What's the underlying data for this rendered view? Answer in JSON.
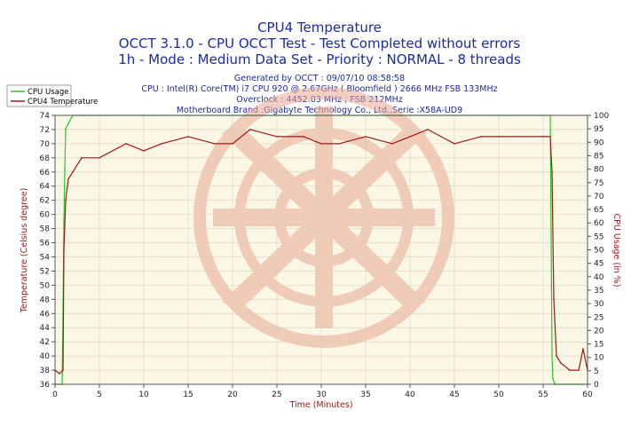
{
  "header": {
    "title": "CPU4 Temperature",
    "subtitle1": "OCCT 3.1.0 - CPU OCCT Test - Test Completed without errors",
    "subtitle2": "1h - Mode : Medium Data Set - Priority : NORMAL - 8 threads",
    "info": [
      "Generated by OCCT : 09/07/10 08:58:58",
      "CPU : Intel(R) Core(TM) i7 CPU 920 @ 2.67GHz ( Bloomfield ) 2666 MHz FSB 133MHz",
      "Overclock : 4452.03 MHz ; FSB 212MHz",
      "Motherboard Brand :Gigabyte Technology Co., Ltd.,Serie :X58A-UD9"
    ]
  },
  "colors": {
    "background": "#fbf7e6",
    "cpu_usage": "#22cc22",
    "temperature": "#a01818",
    "title": "#1a2aa8",
    "watermark": "#e8a892"
  },
  "chart_data": {
    "type": "line",
    "xlabel": "Time (Minutes)",
    "ylabel_left": "Temperature (Celsius degree)",
    "ylabel_right": "CPU Usage (in %)",
    "xlim": [
      0,
      60
    ],
    "ylim_left": [
      36,
      74
    ],
    "ylim_right": [
      0,
      100
    ],
    "x_ticks": [
      "0",
      "5",
      "10",
      "15",
      "20",
      "25",
      "30",
      "35",
      "40",
      "45",
      "50",
      "55",
      "60"
    ],
    "y_left_ticks": [
      "36",
      "38",
      "40",
      "42",
      "44",
      "46",
      "48",
      "50",
      "52",
      "54",
      "56",
      "58",
      "60",
      "62",
      "64",
      "66",
      "68",
      "70",
      "72",
      "74"
    ],
    "y_right_ticks": [
      "0",
      "5",
      "10",
      "15",
      "20",
      "25",
      "30",
      "35",
      "40",
      "45",
      "50",
      "55",
      "60",
      "65",
      "70",
      "75",
      "80",
      "85",
      "90",
      "95",
      "100"
    ],
    "legend": [
      "CPU Usage",
      "CPU4 Temperature"
    ],
    "series": [
      {
        "name": "CPU Usage",
        "axis": "right",
        "x": [
          0,
          0.8,
          0.9,
          1.0,
          1.1,
          1.2,
          1.5,
          2,
          3,
          10,
          20,
          30,
          40,
          50,
          55.8,
          55.9,
          56.0,
          56.1,
          56.3,
          57,
          60
        ],
        "y": [
          0,
          0,
          25,
          60,
          80,
          95,
          97,
          100,
          100,
          100,
          100,
          100,
          100,
          100,
          100,
          55,
          10,
          2,
          0,
          0,
          0
        ]
      },
      {
        "name": "CPU4 Temperature",
        "axis": "left",
        "x": [
          0,
          0.5,
          0.9,
          1.0,
          1.2,
          1.5,
          2.0,
          3,
          5,
          8,
          10,
          12,
          15,
          18,
          20,
          22,
          25,
          28,
          30,
          32,
          35,
          38,
          40,
          42,
          45,
          48,
          50,
          52,
          55,
          55.8,
          56.0,
          56.2,
          56.5,
          57,
          58,
          59,
          59.5,
          60
        ],
        "y": [
          38,
          37.5,
          38,
          55,
          62,
          65,
          66,
          68,
          68,
          70,
          69,
          70,
          71,
          70,
          70,
          72,
          71,
          71,
          70,
          70,
          71,
          70,
          71,
          72,
          70,
          71,
          71,
          71,
          71,
          71,
          66,
          48,
          40,
          39,
          38,
          38,
          41,
          38
        ]
      }
    ]
  }
}
